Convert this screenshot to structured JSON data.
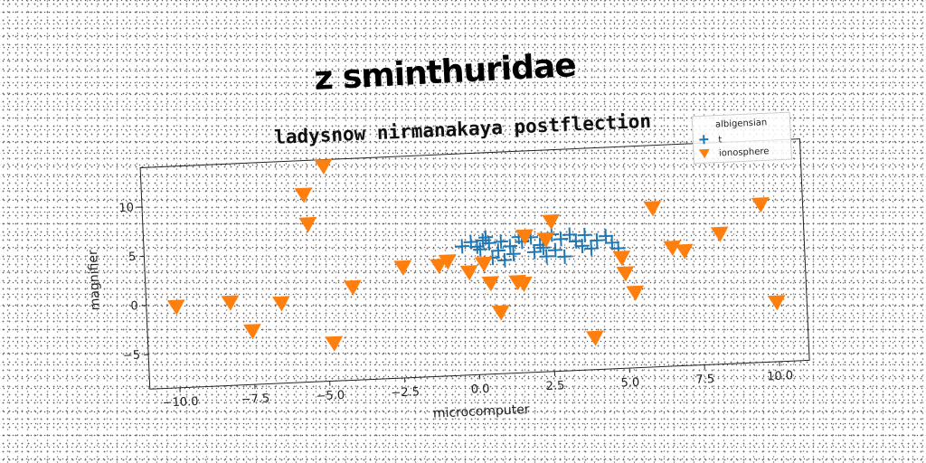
{
  "suptitle": "z sminthuridae",
  "chart_data": {
    "type": "scatter",
    "title": "ladysnow nirmanakaya postflection",
    "xlabel": "microcomputer",
    "ylabel": "magnifier",
    "xlim": [
      -11,
      11
    ],
    "ylim": [
      -8.5,
      14
    ],
    "xticks": [
      -10.0,
      -7.5,
      -5.0,
      -2.5,
      0.0,
      2.5,
      5.0,
      7.5,
      10.0
    ],
    "yticks": [
      -5,
      0,
      5,
      10
    ],
    "grid": false,
    "legend": {
      "title": "albigensian",
      "position": "top-right"
    },
    "series": [
      {
        "name": "t",
        "marker": "plus",
        "color": "#1f77b4",
        "points": [
          [
            -0.4,
            4.6
          ],
          [
            -0.1,
            5.0
          ],
          [
            0.1,
            4.5
          ],
          [
            0.3,
            5.1
          ],
          [
            0.2,
            4.2
          ],
          [
            0.5,
            4.8
          ],
          [
            0.9,
            4.9
          ],
          [
            1.2,
            4.4
          ],
          [
            0.6,
            3.3
          ],
          [
            1.0,
            3.0
          ],
          [
            1.3,
            3.6
          ],
          [
            0.8,
            4.0
          ],
          [
            1.6,
            4.8
          ],
          [
            1.9,
            5.2
          ],
          [
            2.2,
            4.4
          ],
          [
            2.0,
            3.7
          ],
          [
            2.4,
            3.2
          ],
          [
            2.7,
            3.8
          ],
          [
            2.9,
            4.9
          ],
          [
            3.2,
            5.3
          ],
          [
            3.4,
            4.6
          ],
          [
            3.6,
            4.1
          ],
          [
            3.9,
            3.8
          ],
          [
            4.1,
            4.6
          ],
          [
            4.4,
            5.0
          ],
          [
            4.6,
            4.3
          ],
          [
            4.8,
            3.7
          ],
          [
            3.0,
            3.1
          ],
          [
            2.6,
            5.4
          ],
          [
            1.5,
            5.3
          ],
          [
            0.4,
            5.4
          ],
          [
            2.3,
            4.1
          ],
          [
            3.7,
            5.2
          ]
        ]
      },
      {
        "name": "ionosphere",
        "marker": "triangle-down",
        "color": "#ff7f0e",
        "points": [
          [
            -10.0,
            -0.2
          ],
          [
            -8.2,
            0.0
          ],
          [
            -7.5,
            -3.0
          ],
          [
            -6.5,
            -0.3
          ],
          [
            -5.6,
            10.6
          ],
          [
            -5.5,
            7.6
          ],
          [
            -4.9,
            13.4
          ],
          [
            -4.8,
            -4.6
          ],
          [
            -4.1,
            1.0
          ],
          [
            -2.4,
            2.8
          ],
          [
            -1.2,
            2.8
          ],
          [
            -0.9,
            3.2
          ],
          [
            -0.2,
            2.0
          ],
          [
            0.3,
            2.8
          ],
          [
            0.5,
            0.8
          ],
          [
            0.8,
            -2.2
          ],
          [
            1.4,
            0.8
          ],
          [
            1.6,
            0.6
          ],
          [
            1.7,
            5.4
          ],
          [
            2.4,
            5.0
          ],
          [
            2.6,
            6.8
          ],
          [
            3.9,
            -5.2
          ],
          [
            4.9,
            2.8
          ],
          [
            5.0,
            1.2
          ],
          [
            5.3,
            -0.8
          ],
          [
            6.0,
            7.7
          ],
          [
            6.6,
            3.6
          ],
          [
            7.0,
            3.2
          ],
          [
            8.2,
            4.8
          ],
          [
            9.6,
            7.6
          ],
          [
            10.0,
            -2.4
          ]
        ]
      }
    ]
  }
}
